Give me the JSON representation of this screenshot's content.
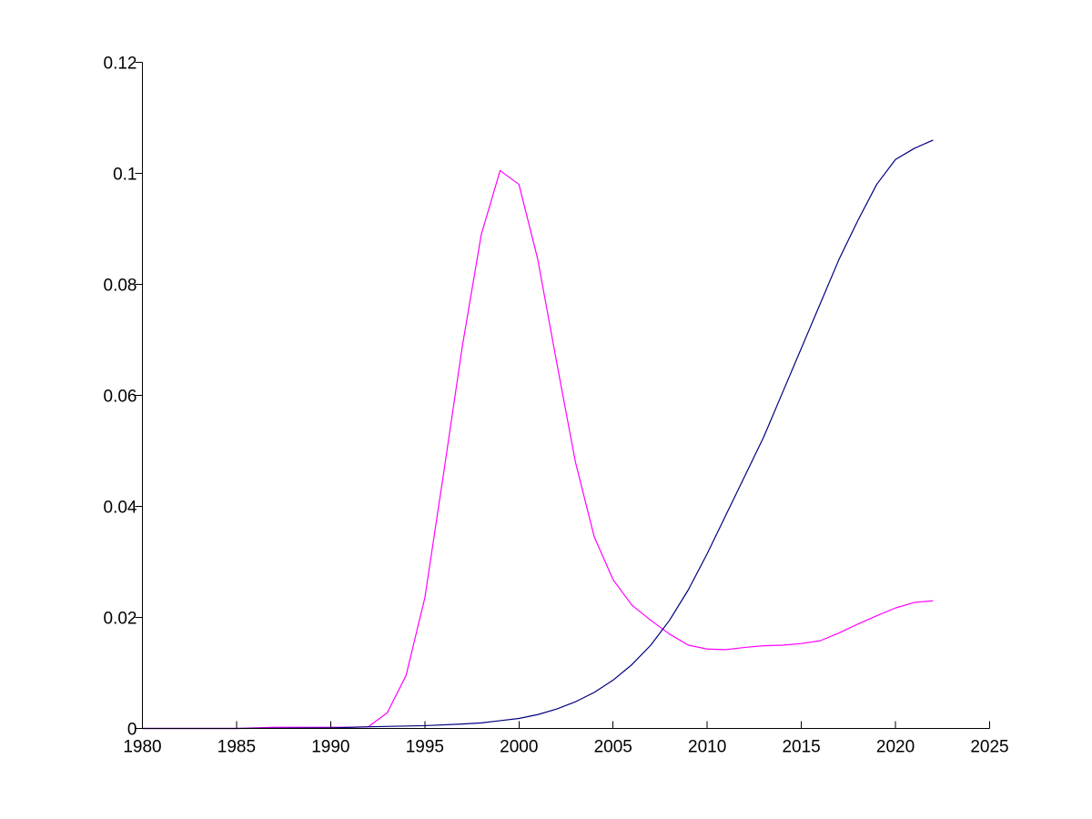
{
  "chart_data": {
    "type": "line",
    "title": "",
    "xlabel": "",
    "ylabel": "",
    "xlim": [
      1980,
      2025
    ],
    "ylim": [
      0,
      0.12
    ],
    "grid": false,
    "x_ticks": [
      1980,
      1985,
      1990,
      1995,
      2000,
      2005,
      2010,
      2015,
      2020,
      2025
    ],
    "x_tick_labels": [
      "1980",
      "1985",
      "1990",
      "1995",
      "2000",
      "2005",
      "2010",
      "2015",
      "2020",
      "2025"
    ],
    "y_ticks": [
      0,
      0.02,
      0.04,
      0.06,
      0.08,
      0.1,
      0.12
    ],
    "y_tick_labels": [
      "0",
      "0.02",
      "0.04",
      "0.06",
      "0.08",
      "0.1",
      "0.12"
    ],
    "series": [
      {
        "color": "#ff00ff",
        "x": [
          1980,
          1985,
          1987,
          1990,
          1991,
          1992,
          1993,
          1994,
          1995,
          1996,
          1997,
          1998,
          1999,
          2000,
          2001,
          2002,
          2003,
          2004,
          2005,
          2006,
          2007,
          2008,
          2009,
          2010,
          2011,
          2012,
          2013,
          2014,
          2015,
          2016,
          2017,
          2018,
          2019,
          2020,
          2021,
          2022
        ],
        "y": [
          0,
          0,
          0.0002,
          0.0002,
          0.0002,
          0.0003,
          0.0028,
          0.0095,
          0.0235,
          0.046,
          0.069,
          0.089,
          0.1005,
          0.098,
          0.0845,
          0.066,
          0.048,
          0.0345,
          0.0268,
          0.0222,
          0.0195,
          0.017,
          0.015,
          0.0143,
          0.0142,
          0.0146,
          0.0149,
          0.015,
          0.0153,
          0.0158,
          0.0172,
          0.0188,
          0.0203,
          0.0217,
          0.0227,
          0.023
        ]
      },
      {
        "color": "#00007f",
        "x": [
          1980,
          1985,
          1990,
          1992,
          1995,
          1997,
          1998,
          1999,
          2000,
          2001,
          2002,
          2003,
          2004,
          2005,
          2006,
          2007,
          2008,
          2009,
          2010,
          2011,
          2012,
          2013,
          2014,
          2015,
          2016,
          2017,
          2018,
          2019,
          2020,
          2021,
          2022
        ],
        "y": [
          0,
          0,
          0.0001,
          0.0003,
          0.0005,
          0.0008,
          0.001,
          0.0014,
          0.0018,
          0.0025,
          0.0035,
          0.0048,
          0.0065,
          0.0087,
          0.0115,
          0.015,
          0.0195,
          0.025,
          0.0315,
          0.0385,
          0.0455,
          0.0525,
          0.0605,
          0.0685,
          0.0765,
          0.0845,
          0.0915,
          0.098,
          0.1025,
          0.1045,
          0.106
        ]
      }
    ]
  }
}
